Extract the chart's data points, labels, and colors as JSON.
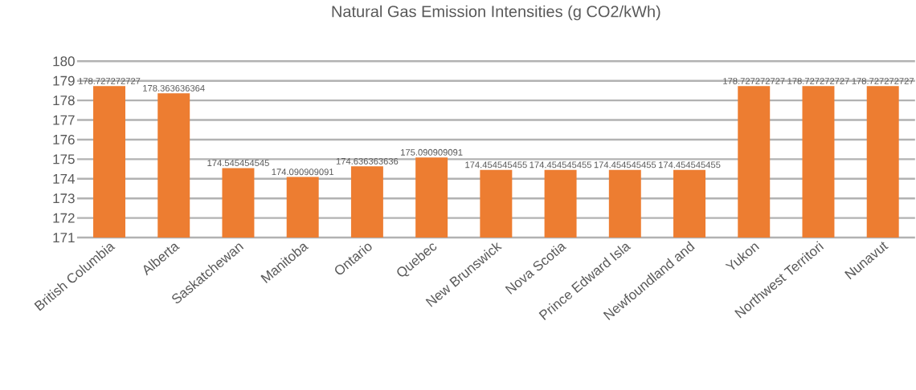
{
  "chart_data": {
    "type": "bar",
    "title": "Natural Gas Emission Intensities (g CO2/kWh)",
    "categories": [
      "British Columbia",
      "Alberta",
      "Saskatchewan",
      "Manitoba",
      "Ontario",
      "Quebec",
      "New Brunswick",
      "Nova Scotia",
      "Prince Edward Isla",
      "Newfoundland and",
      "Yukon",
      "Northwest Territori",
      "Nunavut"
    ],
    "values": [
      178.727272727,
      178.363636364,
      174.545454545,
      174.090909091,
      174.636363636,
      175.090909091,
      174.454545455,
      174.454545455,
      174.454545455,
      174.454545455,
      178.727272727,
      178.727272727,
      178.727272727
    ],
    "color": "#ed7d31",
    "ylim": [
      171,
      180
    ],
    "yticks": [
      171,
      172,
      173,
      174,
      175,
      176,
      177,
      178,
      179,
      180
    ],
    "grid": "y",
    "data_labels": true
  }
}
